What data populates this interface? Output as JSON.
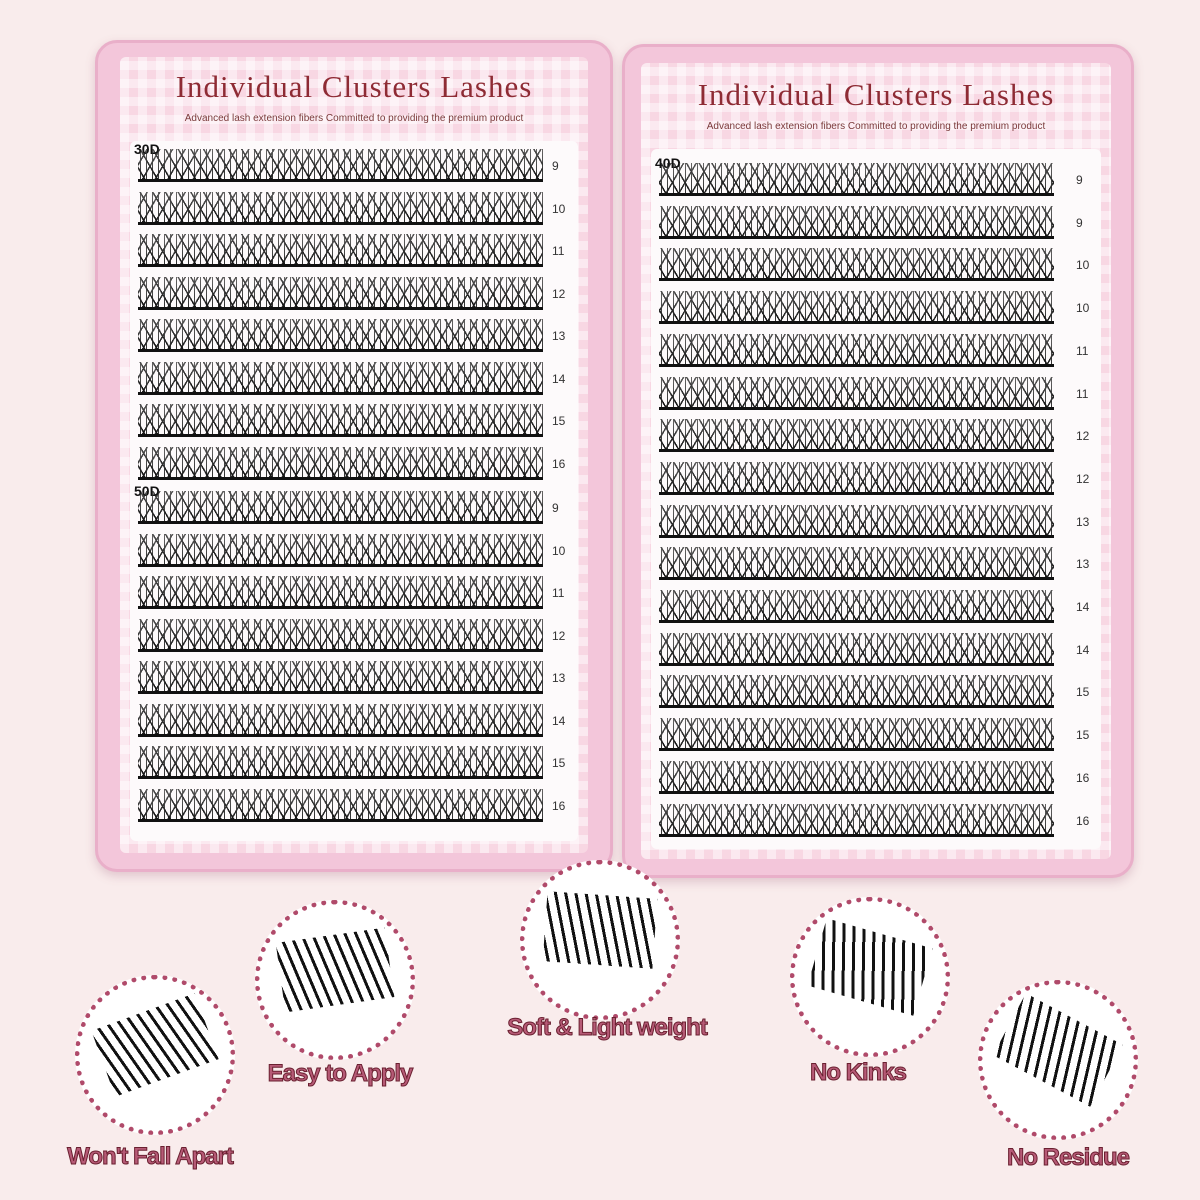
{
  "left_tray": {
    "title": "Individual Clusters Lashes",
    "subtitle": "Advanced lash extension fibers Committed to providing the premium product",
    "groups": [
      {
        "label": "30D",
        "lengths": [
          "9",
          "10",
          "11",
          "12",
          "13",
          "14",
          "15",
          "16"
        ]
      },
      {
        "label": "50D",
        "lengths": [
          "9",
          "10",
          "11",
          "12",
          "13",
          "14",
          "15",
          "16"
        ]
      }
    ]
  },
  "right_tray": {
    "title": "Individual Clusters Lashes",
    "subtitle": "Advanced lash extension fibers Committed to providing the premium product",
    "groups": [
      {
        "label": "40D",
        "lengths": [
          "9",
          "9",
          "10",
          "10",
          "11",
          "11",
          "12",
          "12",
          "13",
          "13",
          "14",
          "14",
          "15",
          "15",
          "16",
          "16"
        ]
      }
    ]
  },
  "features": [
    {
      "label": "Won't Fall Apart"
    },
    {
      "label": "Easy to Apply"
    },
    {
      "label": "Soft & Light weight"
    },
    {
      "label": "No Kinks"
    },
    {
      "label": "No Residue"
    }
  ],
  "colors": {
    "case": "#f3c6da",
    "feature_text": "#b65a76",
    "title": "#8e2b34"
  }
}
